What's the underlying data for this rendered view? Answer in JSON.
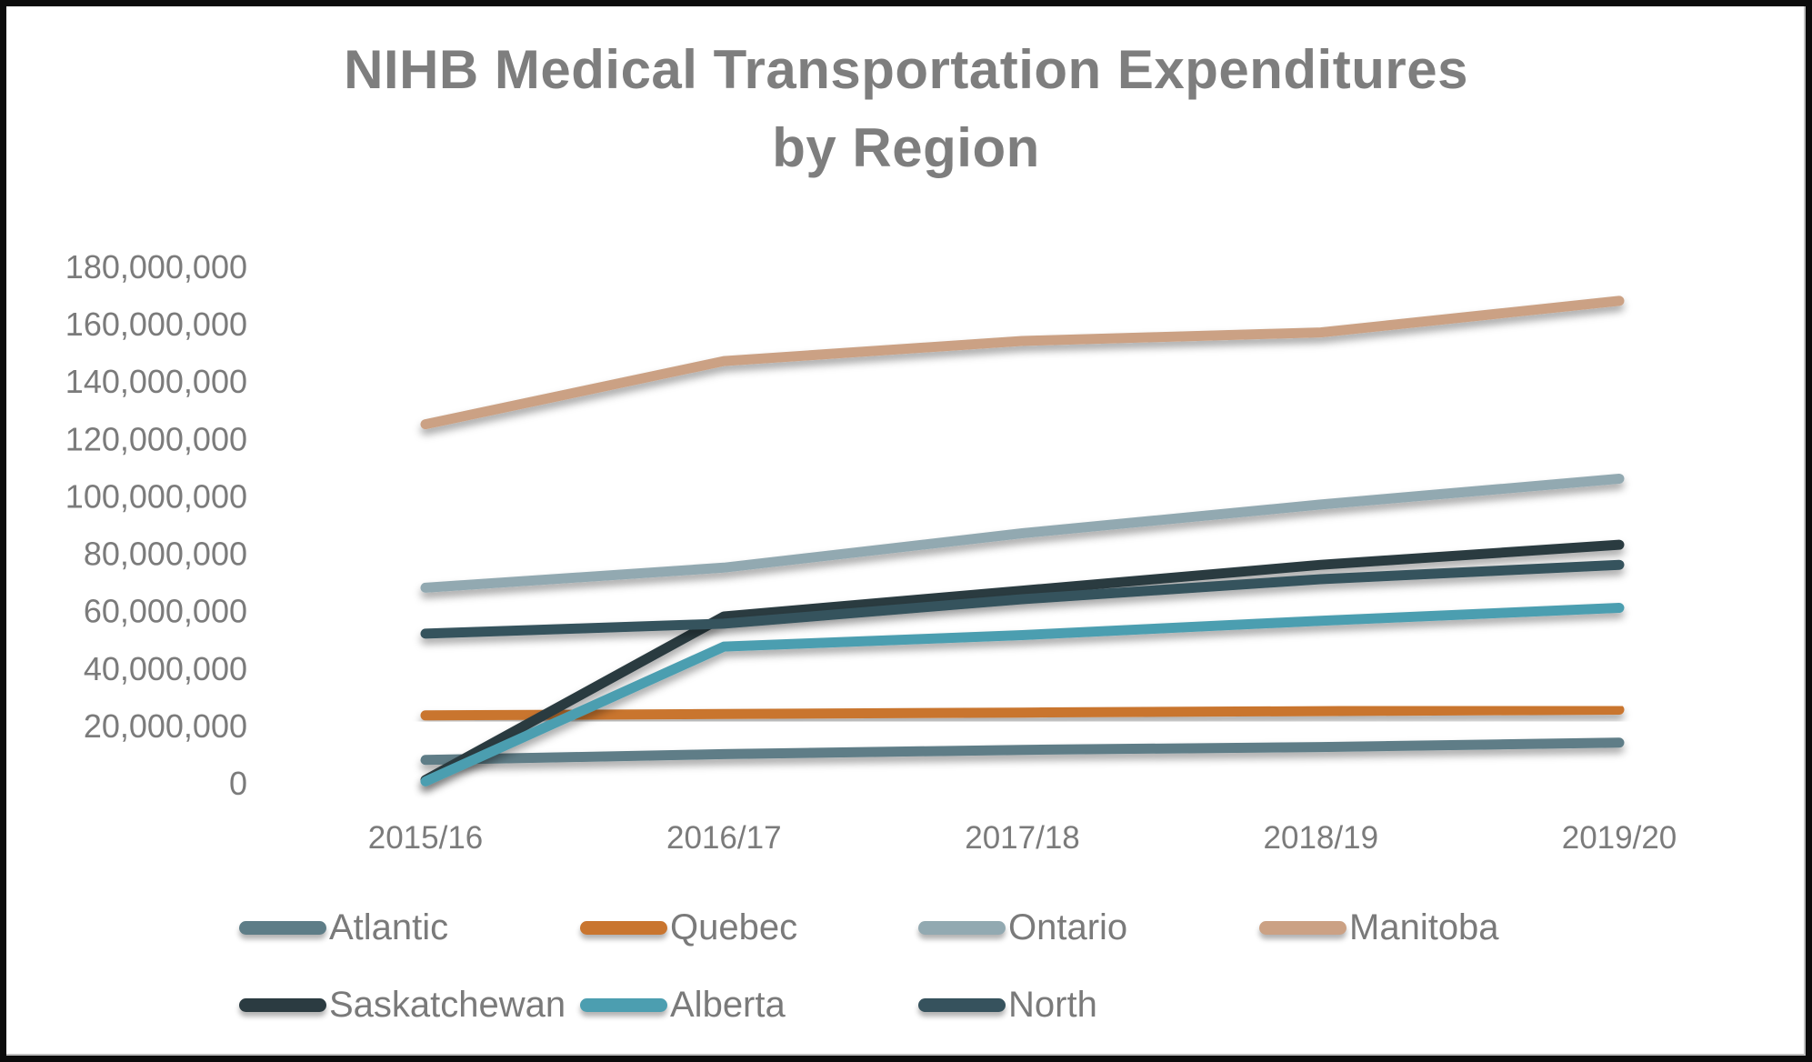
{
  "title": {
    "line1": "NIHB Medical Transportation Expenditures",
    "line2": "by Region"
  },
  "axis": {
    "y_tick_labels": [
      "180,000,000",
      "160,000,000",
      "140,000,000",
      "120,000,000",
      "100,000,000",
      "80,000,000",
      "60,000,000",
      "40,000,000",
      "20,000,000",
      "0"
    ],
    "x_tick_labels": [
      "2015/16",
      "2016/17",
      "2017/18",
      "2018/19",
      "2019/20"
    ]
  },
  "colors": {
    "grid": "#d9d9d9",
    "zero_line": "#c2c2c2",
    "tick_text": "#7b7b7b",
    "title_text": "#7e7e7e",
    "legend_text": "#7a7a7a",
    "background": "#ffffff",
    "border": "#0c0c0c"
  },
  "chart_data": {
    "type": "line",
    "title": "NIHB Medical Transportation Expenditures by Region",
    "xlabel": "",
    "ylabel": "",
    "categories": [
      "2015/16",
      "2016/17",
      "2017/18",
      "2018/19",
      "2019/20"
    ],
    "series": [
      {
        "name": "Atlantic",
        "color": "#5e7d87",
        "values": [
          8000000,
          10000000,
          11500000,
          12500000,
          14000000
        ]
      },
      {
        "name": "Quebec",
        "color": "#c9752f",
        "values": [
          23500000,
          24000000,
          24500000,
          25000000,
          25500000
        ]
      },
      {
        "name": "Ontario",
        "color": "#92a9b1",
        "values": [
          68000000,
          75000000,
          87000000,
          97000000,
          106000000
        ]
      },
      {
        "name": "Manitoba",
        "color": "#cba184",
        "values": [
          125000000,
          147000000,
          154000000,
          157000000,
          168000000
        ]
      },
      {
        "name": "Saskatchewan",
        "color": "#2b3b41",
        "values": [
          1000000,
          58000000,
          67000000,
          76000000,
          83000000
        ]
      },
      {
        "name": "Alberta",
        "color": "#4c9eb0",
        "values": [
          500000,
          47500000,
          51500000,
          56500000,
          61000000
        ]
      },
      {
        "name": "North",
        "color": "#36525d",
        "values": [
          52000000,
          55500000,
          64000000,
          71000000,
          76000000
        ]
      }
    ],
    "ylim": [
      0,
      180000000
    ],
    "ytick_step": 20000000,
    "grid": true,
    "legend_position": "bottom",
    "legend_rows": [
      [
        "Atlantic",
        "Quebec",
        "Ontario",
        "Manitoba"
      ],
      [
        "Saskatchewan",
        "Alberta",
        "North"
      ]
    ]
  }
}
